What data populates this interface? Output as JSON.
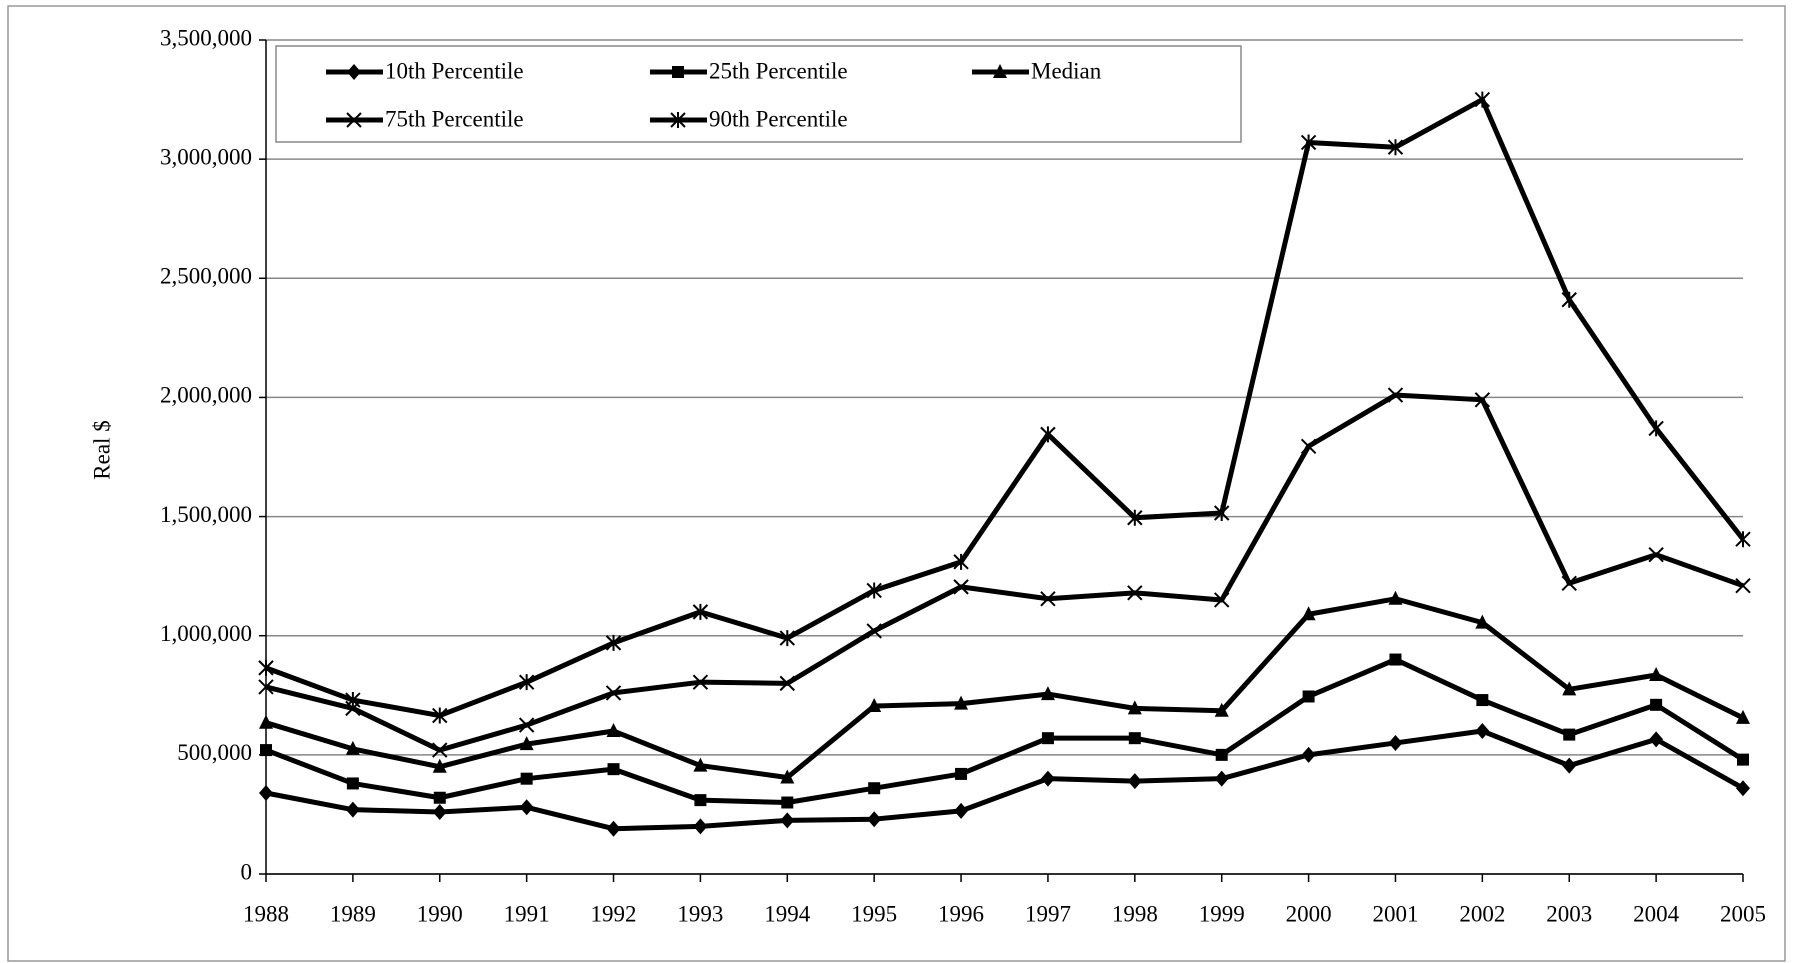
{
  "chart_data": {
    "type": "line",
    "y_label": "Real  $",
    "categories": [
      "1988",
      "1989",
      "1990",
      "1991",
      "1992",
      "1993",
      "1994",
      "1995",
      "1996",
      "1997",
      "1998",
      "1999",
      "2000",
      "2001",
      "2002",
      "2003",
      "2004",
      "2005"
    ],
    "series": [
      {
        "name": "10th Percentile",
        "color": "#000000",
        "marker": "diamond",
        "values": [
          340000,
          270000,
          260000,
          280000,
          190000,
          200000,
          225000,
          230000,
          265000,
          400000,
          390000,
          400000,
          500000,
          550000,
          600000,
          455000,
          565000,
          360000
        ]
      },
      {
        "name": "25th Percentile",
        "color": "#000000",
        "marker": "square",
        "values": [
          520000,
          380000,
          320000,
          400000,
          440000,
          310000,
          300000,
          360000,
          420000,
          570000,
          570000,
          500000,
          745000,
          900000,
          730000,
          585000,
          710000,
          480000
        ]
      },
      {
        "name": "Median",
        "color": "#000000",
        "marker": "triangle",
        "values": [
          635000,
          525000,
          450000,
          545000,
          600000,
          455000,
          405000,
          705000,
          715000,
          755000,
          695000,
          685000,
          1090000,
          1155000,
          1055000,
          775000,
          835000,
          655000
        ]
      },
      {
        "name": "75th Percentile",
        "color": "#000000",
        "marker": "x",
        "values": [
          785000,
          695000,
          520000,
          625000,
          760000,
          805000,
          800000,
          1020000,
          1205000,
          1155000,
          1180000,
          1150000,
          1795000,
          2010000,
          1990000,
          1220000,
          1340000,
          1210000
        ]
      },
      {
        "name": "90th Percentile",
        "color": "#000000",
        "marker": "asterisk",
        "values": [
          865000,
          730000,
          665000,
          805000,
          970000,
          1100000,
          990000,
          1190000,
          1310000,
          1845000,
          1495000,
          1515000,
          3070000,
          3050000,
          3250000,
          2410000,
          1870000,
          1405000
        ]
      }
    ],
    "ylim": [
      0,
      3500000
    ],
    "yticks": [
      0,
      {
        "value": 500000,
        "label": "500,000"
      },
      {
        "value": 1000000,
        "label": "1,000,000"
      },
      {
        "value": 1500000,
        "label": "1,500,000"
      },
      {
        "value": 2000000,
        "label": "2,000,000"
      },
      {
        "value": 2500000,
        "label": "2,500,000"
      },
      {
        "value": 3000000,
        "label": "3,000,000"
      },
      {
        "value": 3500000,
        "label": "3,500,000"
      }
    ],
    "grid": true,
    "legend_position": "upper left"
  }
}
